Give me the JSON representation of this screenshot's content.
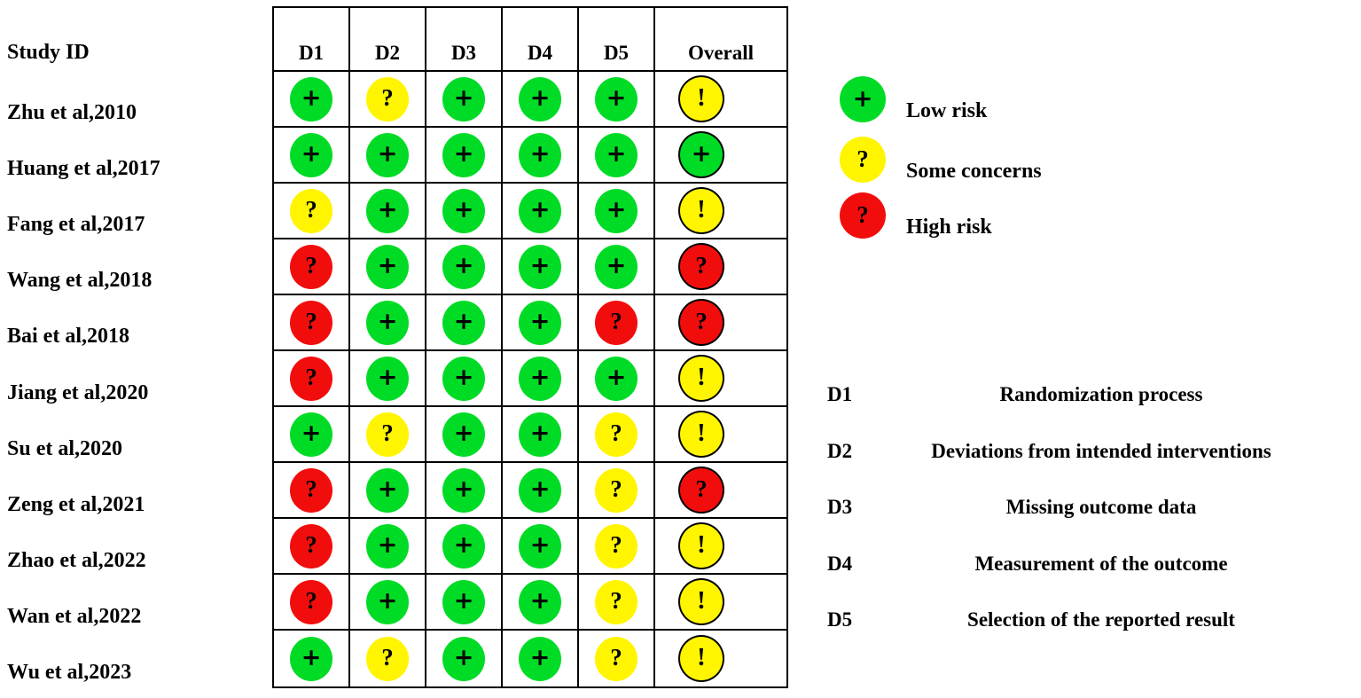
{
  "figure": {
    "study_column_header": "Study ID",
    "columns": [
      "D1",
      "D2",
      "D3",
      "D4",
      "D5",
      "Overall"
    ],
    "rows": [
      {
        "study": "Zhu et al,2010",
        "cells": [
          {
            "color": "green",
            "symbol": "+"
          },
          {
            "color": "yellow",
            "symbol": "?"
          },
          {
            "color": "green",
            "symbol": "+"
          },
          {
            "color": "green",
            "symbol": "+"
          },
          {
            "color": "green",
            "symbol": "+"
          },
          {
            "color": "yellow",
            "symbol": "!"
          }
        ]
      },
      {
        "study": "Huang et al,2017",
        "cells": [
          {
            "color": "green",
            "symbol": "+"
          },
          {
            "color": "green",
            "symbol": "+"
          },
          {
            "color": "green",
            "symbol": "+"
          },
          {
            "color": "green",
            "symbol": "+"
          },
          {
            "color": "green",
            "symbol": "+"
          },
          {
            "color": "green",
            "symbol": "+"
          }
        ]
      },
      {
        "study": "Fang et al,2017",
        "cells": [
          {
            "color": "yellow",
            "symbol": "?"
          },
          {
            "color": "green",
            "symbol": "+"
          },
          {
            "color": "green",
            "symbol": "+"
          },
          {
            "color": "green",
            "symbol": "+"
          },
          {
            "color": "green",
            "symbol": "+"
          },
          {
            "color": "yellow",
            "symbol": "!"
          }
        ]
      },
      {
        "study": "Wang et al,2018",
        "cells": [
          {
            "color": "red",
            "symbol": "?"
          },
          {
            "color": "green",
            "symbol": "+"
          },
          {
            "color": "green",
            "symbol": "+"
          },
          {
            "color": "green",
            "symbol": "+"
          },
          {
            "color": "green",
            "symbol": "+"
          },
          {
            "color": "red",
            "symbol": "?"
          }
        ]
      },
      {
        "study": "Bai et al,2018",
        "cells": [
          {
            "color": "red",
            "symbol": "?"
          },
          {
            "color": "green",
            "symbol": "+"
          },
          {
            "color": "green",
            "symbol": "+"
          },
          {
            "color": "green",
            "symbol": "+"
          },
          {
            "color": "red",
            "symbol": "?"
          },
          {
            "color": "red",
            "symbol": "?"
          }
        ]
      },
      {
        "study": "Jiang et al,2020",
        "cells": [
          {
            "color": "red",
            "symbol": "?"
          },
          {
            "color": "green",
            "symbol": "+"
          },
          {
            "color": "green",
            "symbol": "+"
          },
          {
            "color": "green",
            "symbol": "+"
          },
          {
            "color": "green",
            "symbol": "+"
          },
          {
            "color": "yellow",
            "symbol": "!"
          }
        ]
      },
      {
        "study": "Su et al,2020",
        "cells": [
          {
            "color": "green",
            "symbol": "+"
          },
          {
            "color": "yellow",
            "symbol": "?"
          },
          {
            "color": "green",
            "symbol": "+"
          },
          {
            "color": "green",
            "symbol": "+"
          },
          {
            "color": "yellow",
            "symbol": "?"
          },
          {
            "color": "yellow",
            "symbol": "!"
          }
        ]
      },
      {
        "study": "Zeng et al,2021",
        "cells": [
          {
            "color": "red",
            "symbol": "?"
          },
          {
            "color": "green",
            "symbol": "+"
          },
          {
            "color": "green",
            "symbol": "+"
          },
          {
            "color": "green",
            "symbol": "+"
          },
          {
            "color": "yellow",
            "symbol": "?"
          },
          {
            "color": "red",
            "symbol": "?"
          }
        ]
      },
      {
        "study": "Zhao et al,2022",
        "cells": [
          {
            "color": "red",
            "symbol": "?"
          },
          {
            "color": "green",
            "symbol": "+"
          },
          {
            "color": "green",
            "symbol": "+"
          },
          {
            "color": "green",
            "symbol": "+"
          },
          {
            "color": "yellow",
            "symbol": "?"
          },
          {
            "color": "yellow",
            "symbol": "!"
          }
        ]
      },
      {
        "study": "Wan et al,2022",
        "cells": [
          {
            "color": "red",
            "symbol": "?"
          },
          {
            "color": "green",
            "symbol": "+"
          },
          {
            "color": "green",
            "symbol": "+"
          },
          {
            "color": "green",
            "symbol": "+"
          },
          {
            "color": "yellow",
            "symbol": "?"
          },
          {
            "color": "yellow",
            "symbol": "!"
          }
        ]
      },
      {
        "study": "Wu et al,2023",
        "cells": [
          {
            "color": "green",
            "symbol": "+"
          },
          {
            "color": "yellow",
            "symbol": "?"
          },
          {
            "color": "green",
            "symbol": "+"
          },
          {
            "color": "green",
            "symbol": "+"
          },
          {
            "color": "yellow",
            "symbol": "?"
          },
          {
            "color": "yellow",
            "symbol": "!"
          }
        ]
      }
    ]
  },
  "legend": {
    "items": [
      {
        "color": "green",
        "symbol": "+",
        "label": "Low risk"
      },
      {
        "color": "yellow",
        "symbol": "?",
        "label": "Some concerns"
      },
      {
        "color": "red",
        "symbol": "?",
        "label": "High risk"
      }
    ]
  },
  "domain_key": {
    "items": [
      {
        "id": "D1",
        "label": "Randomization process"
      },
      {
        "id": "D2",
        "label": "Deviations from intended interventions"
      },
      {
        "id": "D3",
        "label": "Missing outcome data"
      },
      {
        "id": "D4",
        "label": "Measurement of the outcome"
      },
      {
        "id": "D5",
        "label": "Selection of the reported result"
      }
    ]
  },
  "colors": {
    "green": "#00DC26",
    "yellow": "#FFF500",
    "red": "#F20D0D",
    "grid_border": "#000000"
  },
  "chart_data": {
    "type": "table",
    "title": "Risk of bias traffic light plot",
    "columns": [
      "Study ID",
      "D1",
      "D2",
      "D3",
      "D4",
      "D5",
      "Overall"
    ],
    "rows": [
      [
        "Zhu et al,2010",
        "Low risk",
        "Some concerns",
        "Low risk",
        "Low risk",
        "Low risk",
        "Some concerns"
      ],
      [
        "Huang et al,2017",
        "Low risk",
        "Low risk",
        "Low risk",
        "Low risk",
        "Low risk",
        "Low risk"
      ],
      [
        "Fang et al,2017",
        "Some concerns",
        "Low risk",
        "Low risk",
        "Low risk",
        "Low risk",
        "Some concerns"
      ],
      [
        "Wang et al,2018",
        "High risk",
        "Low risk",
        "Low risk",
        "Low risk",
        "Low risk",
        "High risk"
      ],
      [
        "Bai et al,2018",
        "High risk",
        "Low risk",
        "Low risk",
        "Low risk",
        "High risk",
        "High risk"
      ],
      [
        "Jiang et al,2020",
        "High risk",
        "Low risk",
        "Low risk",
        "Low risk",
        "Low risk",
        "Some concerns"
      ],
      [
        "Su et al,2020",
        "Low risk",
        "Some concerns",
        "Low risk",
        "Low risk",
        "Some concerns",
        "Some concerns"
      ],
      [
        "Zeng et al,2021",
        "High risk",
        "Low risk",
        "Low risk",
        "Low risk",
        "Some concerns",
        "High risk"
      ],
      [
        "Zhao et al,2022",
        "High risk",
        "Low risk",
        "Low risk",
        "Low risk",
        "Some concerns",
        "Some concerns"
      ],
      [
        "Wan et al,2022",
        "High risk",
        "Low risk",
        "Low risk",
        "Low risk",
        "Some concerns",
        "Some concerns"
      ],
      [
        "Wu et al,2023",
        "Low risk",
        "Some concerns",
        "Low risk",
        "Low risk",
        "Some concerns",
        "Some concerns"
      ]
    ],
    "legend_entries": [
      "Low risk",
      "Some concerns",
      "High risk"
    ],
    "legend_colors": [
      "#00DC26",
      "#FFF500",
      "#F20D0D"
    ],
    "domain_definitions": {
      "D1": "Randomization process",
      "D2": "Deviations from intended interventions",
      "D3": "Missing outcome data",
      "D4": "Measurement of the outcome",
      "D5": "Selection of the reported result"
    },
    "layout": {
      "grid": true,
      "legend_position": "right"
    }
  }
}
